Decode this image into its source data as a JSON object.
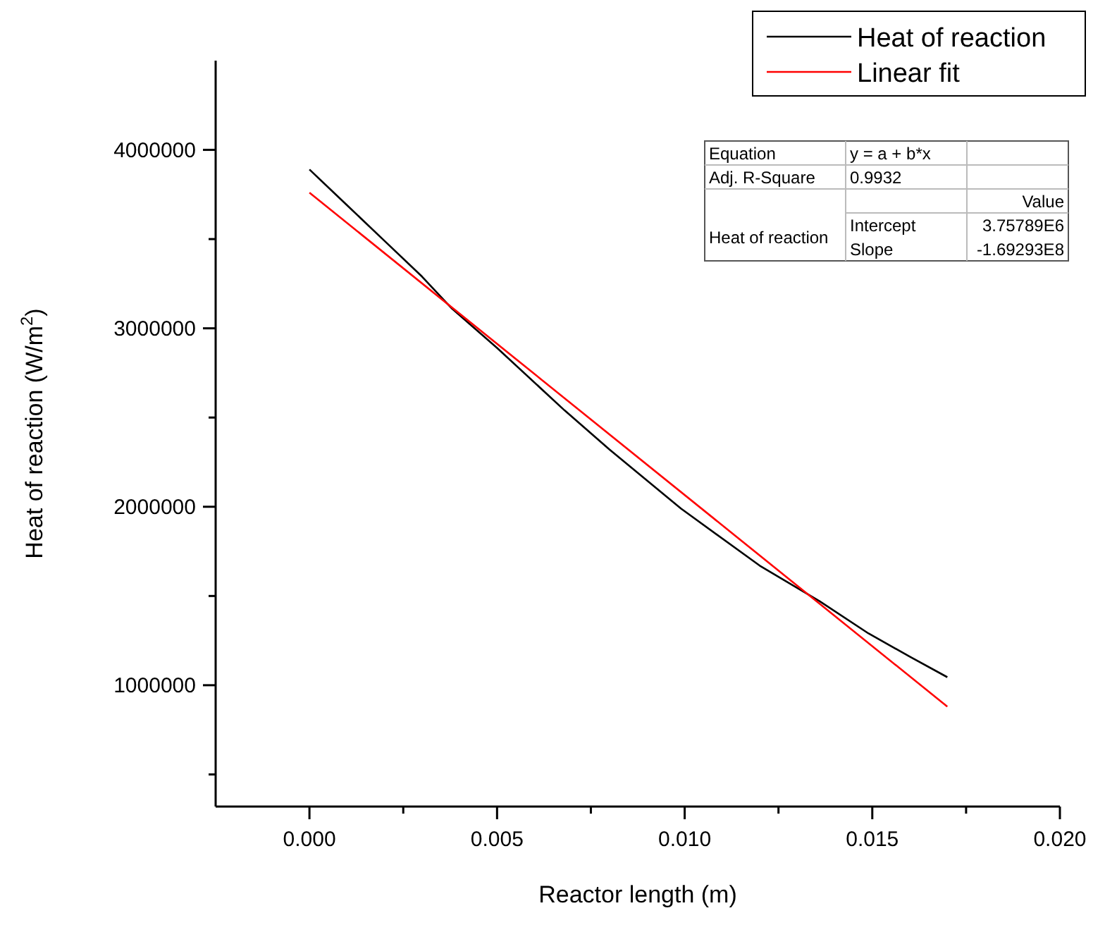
{
  "chart_data": {
    "type": "line",
    "xlabel": "Reactor length (m)",
    "ylabel": "Heat of reaction (W/m$^{2}$)",
    "xlim": [
      -0.0025,
      0.02
    ],
    "ylim": [
      320000,
      4500000
    ],
    "xticks": [
      {
        "value": 0,
        "label": "0.000"
      },
      {
        "value": 0.005,
        "label": "0.005"
      },
      {
        "value": 0.01,
        "label": "0.010"
      },
      {
        "value": 0.015,
        "label": "0.015"
      },
      {
        "value": 0.02,
        "label": "0.020"
      },
      {
        "value": 0.0025,
        "label": null
      },
      {
        "value": 0.0075,
        "label": null
      },
      {
        "value": 0.0125,
        "label": null
      },
      {
        "value": 0.0175,
        "label": null
      }
    ],
    "yticks": [
      1000000,
      2000000,
      3000000,
      4000000,
      {
        "value": 500000,
        "label": null
      },
      {
        "value": 1500000,
        "label": null
      },
      {
        "value": 2500000,
        "label": null
      },
      {
        "value": 3500000,
        "label": null
      }
    ],
    "grid": false,
    "legend": "top right",
    "marker": "none",
    "line_style": "solid",
    "series": [
      {
        "name": "Heat of reaction",
        "color": "#000000",
        "x": [
          0,
          0.001,
          0.002,
          0.003,
          0.0038,
          0.005,
          0.0068,
          0.008,
          0.0099,
          0.012,
          0.0136,
          0.0149,
          0.016,
          0.017
        ],
        "values": [
          3890000,
          3690000,
          3490000,
          3290000,
          3110000,
          2890000,
          2540000,
          2320000,
          1990000,
          1670000,
          1470000,
          1290000,
          1160000,
          1045000
        ]
      },
      {
        "name": "Linear fit",
        "color": "#ff0000",
        "x": [
          0,
          0.017
        ],
        "values": [
          3760000,
          880000
        ]
      }
    ],
    "annotations": [
      "Equation",
      "y = a + b*x",
      "Adj. R-Square",
      "0.9932",
      "Value",
      "Heat of reaction",
      "Intercept",
      "3.75789E6",
      "Slope",
      "-1.69293E8"
    ]
  }
}
